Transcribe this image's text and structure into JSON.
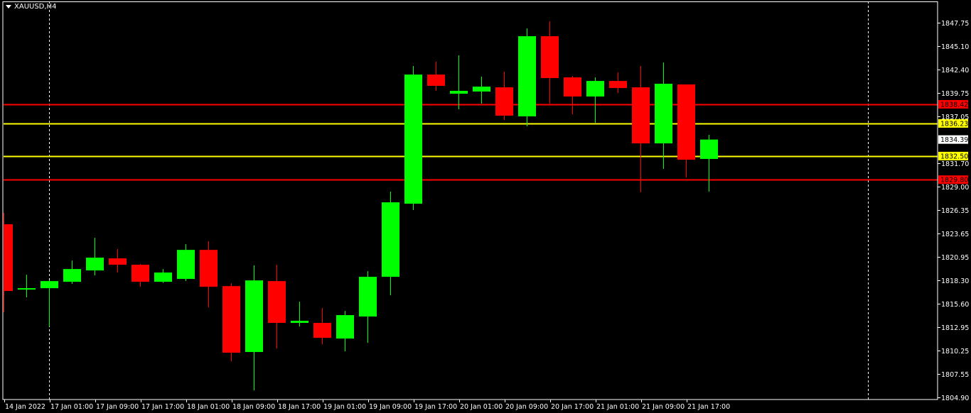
{
  "header": {
    "symbol_timeframe": "XAUUSD,H4",
    "menu_icon": "triangle-down-icon"
  },
  "colors": {
    "background": "#000000",
    "bull": "#00ff00",
    "bear": "#ff0000",
    "axis": "#ffffff",
    "support_resistance_red": "#ff0000",
    "support_resistance_yellow": "#ffff00",
    "period_separator": "#ffffff"
  },
  "chart_data": {
    "type": "candlestick",
    "title": "XAUUSD,H4",
    "ylim": [
      1804.9,
      1847.75
    ],
    "grid": false,
    "y_ticks": [
      "1847.75",
      "1845.10",
      "1842.40",
      "1839.75",
      "1837.05",
      "1831.70",
      "1829.00",
      "1826.35",
      "1823.65",
      "1820.95",
      "1818.30",
      "1815.60",
      "1812.95",
      "1810.25",
      "1807.55",
      "1804.90"
    ],
    "x_tick_labels": [
      {
        "candle": 0,
        "label": "14 Jan 2022"
      },
      {
        "candle": 2,
        "label": "17 Jan 01:00"
      },
      {
        "candle": 4,
        "label": "17 Jan 09:00"
      },
      {
        "candle": 6,
        "label": "17 Jan 17:00"
      },
      {
        "candle": 8,
        "label": "18 Jan 01:00"
      },
      {
        "candle": 10,
        "label": "18 Jan 09:00"
      },
      {
        "candle": 12,
        "label": "18 Jan 17:00"
      },
      {
        "candle": 14,
        "label": "19 Jan 01:00"
      },
      {
        "candle": 16,
        "label": "19 Jan 09:00"
      },
      {
        "candle": 18,
        "label": "19 Jan 17:00"
      },
      {
        "candle": 20,
        "label": "20 Jan 01:00"
      },
      {
        "candle": 22,
        "label": "20 Jan 09:00"
      },
      {
        "candle": 24,
        "label": "20 Jan 17:00"
      },
      {
        "candle": 26,
        "label": "21 Jan 01:00"
      },
      {
        "candle": 28,
        "label": "21 Jan 09:00"
      },
      {
        "candle": 30,
        "label": "21 Jan 17:00"
      }
    ],
    "candles": [
      {
        "o": 1824.7,
        "h": 1826.0,
        "l": 1814.63,
        "c": 1817.07
      },
      {
        "o": 1817.23,
        "h": 1818.93,
        "l": 1816.34,
        "c": 1817.39
      },
      {
        "o": 1817.39,
        "h": 1818.3,
        "l": 1813.0,
        "c": 1818.2
      },
      {
        "o": 1818.12,
        "h": 1820.56,
        "l": 1817.88,
        "c": 1819.58
      },
      {
        "o": 1819.42,
        "h": 1823.16,
        "l": 1818.85,
        "c": 1820.88
      },
      {
        "o": 1820.8,
        "h": 1821.86,
        "l": 1819.18,
        "c": 1820.07
      },
      {
        "o": 1820.07,
        "h": 1820.15,
        "l": 1817.55,
        "c": 1818.12
      },
      {
        "o": 1818.12,
        "h": 1819.58,
        "l": 1818.0,
        "c": 1819.18
      },
      {
        "o": 1818.45,
        "h": 1822.42,
        "l": 1818.2,
        "c": 1821.77
      },
      {
        "o": 1821.77,
        "h": 1822.75,
        "l": 1815.2,
        "c": 1817.55
      },
      {
        "o": 1817.63,
        "h": 1817.96,
        "l": 1809.03,
        "c": 1810.01
      },
      {
        "o": 1810.09,
        "h": 1820.0,
        "l": 1805.7,
        "c": 1818.28
      },
      {
        "o": 1818.2,
        "h": 1820.07,
        "l": 1810.49,
        "c": 1813.42
      },
      {
        "o": 1813.42,
        "h": 1815.85,
        "l": 1813.0,
        "c": 1813.66
      },
      {
        "o": 1813.42,
        "h": 1815.12,
        "l": 1810.98,
        "c": 1811.71
      },
      {
        "o": 1811.63,
        "h": 1814.79,
        "l": 1810.17,
        "c": 1814.31
      },
      {
        "o": 1814.15,
        "h": 1819.34,
        "l": 1811.14,
        "c": 1818.69
      },
      {
        "o": 1818.69,
        "h": 1828.43,
        "l": 1816.58,
        "c": 1827.21
      },
      {
        "o": 1827.05,
        "h": 1842.8,
        "l": 1826.32,
        "c": 1841.82
      },
      {
        "o": 1841.82,
        "h": 1843.29,
        "l": 1839.96,
        "c": 1840.53
      },
      {
        "o": 1839.63,
        "h": 1844.02,
        "l": 1837.85,
        "c": 1839.96
      },
      {
        "o": 1839.88,
        "h": 1841.58,
        "l": 1838.5,
        "c": 1840.44
      },
      {
        "o": 1840.36,
        "h": 1842.15,
        "l": 1836.63,
        "c": 1837.12
      },
      {
        "o": 1837.04,
        "h": 1847.1,
        "l": 1835.9,
        "c": 1846.21
      },
      {
        "o": 1846.21,
        "h": 1847.91,
        "l": 1838.5,
        "c": 1841.42
      },
      {
        "o": 1841.5,
        "h": 1841.66,
        "l": 1837.28,
        "c": 1839.31
      },
      {
        "o": 1839.31,
        "h": 1841.5,
        "l": 1836.3,
        "c": 1841.09
      },
      {
        "o": 1841.09,
        "h": 1842.07,
        "l": 1839.71,
        "c": 1840.28
      },
      {
        "o": 1840.36,
        "h": 1842.8,
        "l": 1828.35,
        "c": 1833.95
      },
      {
        "o": 1833.95,
        "h": 1843.2,
        "l": 1831.03,
        "c": 1840.77
      },
      {
        "o": 1840.69,
        "h": 1840.69,
        "l": 1830.05,
        "c": 1832.08
      },
      {
        "o": 1832.17,
        "h": 1834.93,
        "l": 1828.43,
        "c": 1834.39
      }
    ],
    "horizontal_levels": [
      {
        "price": "1838.42",
        "color": "#ff0000"
      },
      {
        "price": "1836.23",
        "color": "#ffff00"
      },
      {
        "price": "1832.50",
        "color": "#ffff00"
      },
      {
        "price": "1829.80",
        "color": "#ff0000"
      }
    ],
    "current_price": "1834.39",
    "period_separators_at_candle": [
      2,
      38
    ]
  }
}
